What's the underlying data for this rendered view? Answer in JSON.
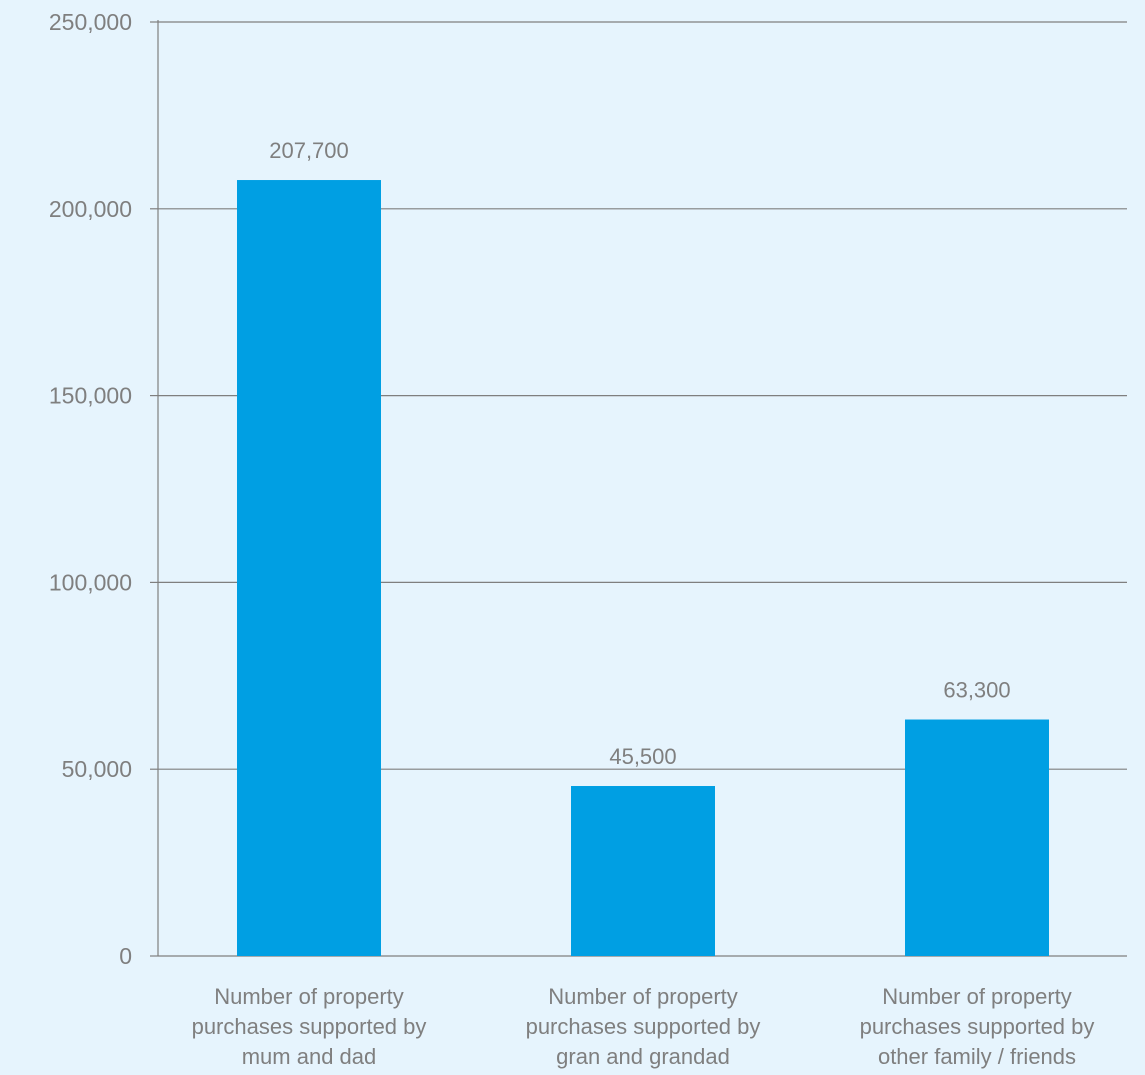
{
  "chart_data": {
    "type": "bar",
    "categories": [
      [
        "Number of property",
        "purchases supported by",
        "mum and dad"
      ],
      [
        "Number of property",
        "purchases supported by",
        "gran and grandad"
      ],
      [
        "Number of property",
        "purchases supported by",
        "other family / friends"
      ]
    ],
    "values": [
      207700,
      45500,
      63300
    ],
    "data_labels": [
      "207,700",
      "45,500",
      "63,300"
    ],
    "yticks": [
      0,
      50000,
      100000,
      150000,
      200000,
      250000
    ],
    "ytick_labels": [
      "0",
      "50,000",
      "100,000",
      "150,000",
      "200,000",
      "250,000"
    ],
    "ylim": [
      0,
      250000
    ],
    "grid": true,
    "title": "",
    "xlabel": "",
    "ylabel": ""
  },
  "colors": {
    "background": "#e6f4fd",
    "bar": "#009fe3",
    "grid": "#7f7f7f",
    "text": "#7f7f7f"
  }
}
